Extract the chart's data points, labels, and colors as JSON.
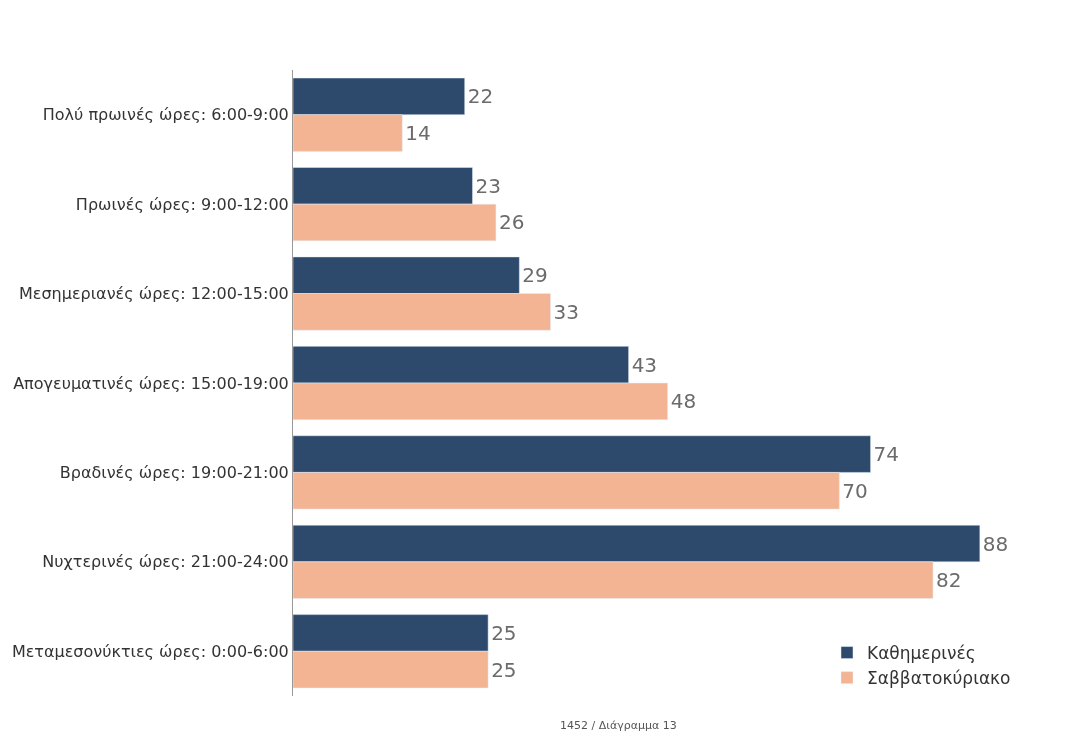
{
  "chart_data": {
    "type": "bar",
    "orientation": "horizontal",
    "categories": [
      "Πολύ πρωινές ώρες: 6:00-9:00",
      "Πρωινές ώρες: 9:00-12:00",
      "Μεσημεριανές ώρες: 12:00-15:00",
      "Απογευματινές ώρες: 15:00-19:00",
      "Βραδινές ώρες: 19:00-21:00",
      "Νυχτερινές ώρες: 21:00-24:00",
      "Μεταμεσονύκτιες ώρες: 0:00-6:00"
    ],
    "series": [
      {
        "name": "Καθημερινές",
        "color": "#2d4a6c",
        "values": [
          22,
          23,
          29,
          43,
          74,
          88,
          25
        ]
      },
      {
        "name": "Σαββατοκύριακο",
        "color": "#f2b493",
        "values": [
          14,
          26,
          33,
          48,
          70,
          82,
          25
        ]
      }
    ],
    "data_labels": true,
    "legend": "bottom right",
    "tick_labels": "y",
    "annotations": [
      "1452 / Διάγραμμα 13"
    ]
  }
}
